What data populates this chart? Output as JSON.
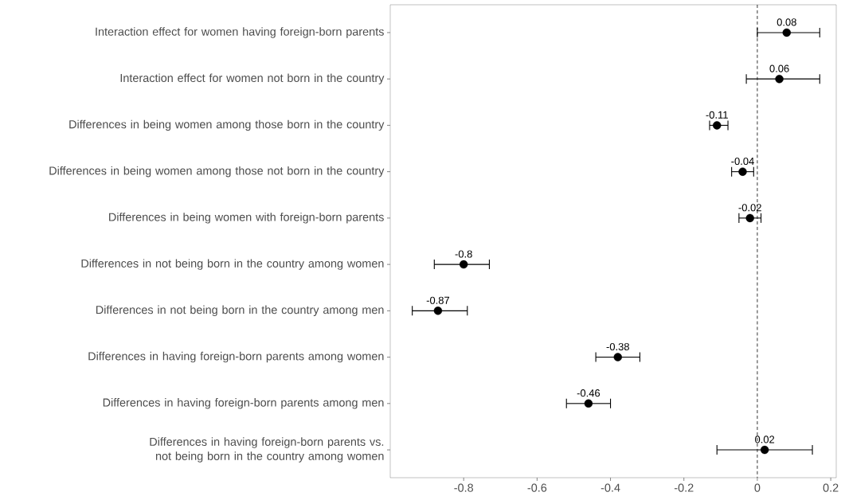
{
  "chart_data": {
    "type": "scatter",
    "orientation": "horizontal",
    "categories": [
      "Interaction effect for women having foreign-born parents",
      "Interaction effect for women not born in the country",
      "Differences in being women among those born in the country",
      "Differences in being women among those not born in the country",
      "Differences in being women with foreign-born parents",
      "Differences in not being born in the country among women",
      "Differences in not being born in the country among men",
      "Differences in having foreign-born parents among women",
      "Differences in having foreign-born parents among men",
      "Differences in having foreign-born parents vs. not being born in the country among women"
    ],
    "values": [
      0.08,
      0.06,
      -0.11,
      -0.04,
      -0.02,
      -0.8,
      -0.87,
      -0.38,
      -0.46,
      0.02
    ],
    "errors": [
      [
        0.0,
        0.17
      ],
      [
        -0.03,
        0.17
      ],
      [
        -0.13,
        -0.08
      ],
      [
        -0.07,
        -0.01
      ],
      [
        -0.05,
        0.01
      ],
      [
        -0.88,
        -0.73
      ],
      [
        -0.94,
        -0.79
      ],
      [
        -0.44,
        -0.32
      ],
      [
        -0.52,
        -0.4
      ],
      [
        -0.11,
        0.15
      ]
    ],
    "color": "#000000",
    "marker": "circle",
    "data_labels": true,
    "grid": false,
    "xlim": [
      -1.0,
      0.215
    ],
    "xticks": [
      -0.8,
      -0.6,
      -0.4,
      -0.2,
      0,
      0.2
    ],
    "ref_lines": [
      {
        "axis": "x",
        "value": 0,
        "line_style": "dashed"
      }
    ]
  }
}
